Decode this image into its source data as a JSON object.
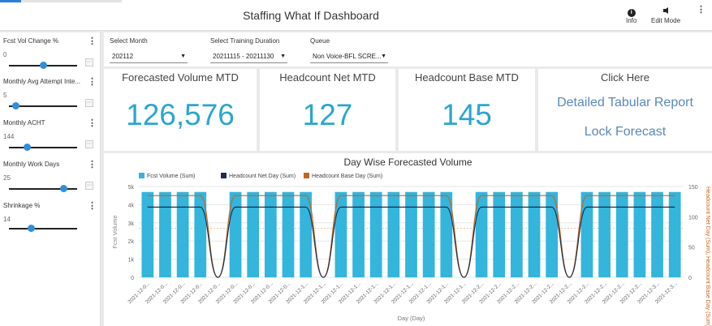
{
  "topbar": {
    "title": "Staffing What If Dashboard",
    "info_label": "Info",
    "info_icon": "info-icon",
    "edit_label": "Edit Mode",
    "edit_icon": "edit-mode-icon",
    "more_icon": "⋮"
  },
  "sliders": [
    {
      "label": "Fcst Vol Change %",
      "value": "0",
      "position": 0.5
    },
    {
      "label": "Monthly Avg Attempt Inte...",
      "value": "5",
      "position": 0.1
    },
    {
      "label": "Monthly ACHT",
      "value": "144",
      "position": 0.27
    },
    {
      "label": "Monthly Work Days",
      "value": "25",
      "position": 0.8
    },
    {
      "label": "Shrinkage %",
      "value": "14",
      "position": 0.33
    }
  ],
  "filters": {
    "month": {
      "label": "Select Month",
      "value": "202112"
    },
    "training": {
      "label": "Select Training Duration",
      "value": "20211115 - 20211130"
    },
    "queue": {
      "label": "Queue",
      "value": "Non Voice-BFL SCRE..."
    }
  },
  "kpis": {
    "forecasted_volume": {
      "title": "Forecasted Volume MTD",
      "value": "126,576"
    },
    "headcount_net": {
      "title": "Headcount Net MTD",
      "value": "127"
    },
    "headcount_base": {
      "title": "Headcount Base MTD",
      "value": "145"
    }
  },
  "actions": {
    "title": "Click Here",
    "report_link": "Detailed Tabular Report",
    "lock_link": "Lock Forecast"
  },
  "colors": {
    "bar": "#33b5dc",
    "net_line": "#1b2e4a",
    "base_line": "#c8641c",
    "kpi_value": "#2aa6cf",
    "link": "#5b88b8",
    "slider_thumb": "#2f8fd8"
  },
  "chart_data": {
    "type": "bar",
    "title": "Day Wise Forecasted Volume",
    "xlabel": "Day (Day)",
    "ylabel": "Fcst Volume",
    "y2label": "Headcount Net Day (Sum), Headcount Base Day (Sum)",
    "ylim": [
      0,
      5000
    ],
    "y2lim": [
      0,
      150
    ],
    "yticks": [
      "0",
      "1k",
      "2k",
      "3k",
      "4k",
      "5k"
    ],
    "y2ticks": [
      "0",
      "50",
      "100",
      "150"
    ],
    "legend": [
      "Fcst Volume (Sum)",
      "Headcount Net Day (Sum)",
      "Headcount Base Day (Sum)"
    ],
    "legend_position": "top-left",
    "categories": [
      "2021-12-0...",
      "2021-12-0...",
      "2021-12-0...",
      "2021-12-0...",
      "2021-12-0...",
      "2021-12-0...",
      "2021-12-0...",
      "2021-12-0...",
      "2021-12-0...",
      "2021-12-1...",
      "2021-12-1...",
      "2021-12-1...",
      "2021-12-1...",
      "2021-12-1...",
      "2021-12-1...",
      "2021-12-1...",
      "2021-12-1...",
      "2021-12-1...",
      "2021-12-1...",
      "2021-12-2...",
      "2021-12-2...",
      "2021-12-2...",
      "2021-12-2...",
      "2021-12-2...",
      "2021-12-2...",
      "2021-12-2...",
      "2021-12-2...",
      "2021-12-2...",
      "2021-12-2...",
      "2021-12-3...",
      "2021-12-3..."
    ],
    "series": [
      {
        "name": "Fcst Volume (Sum)",
        "type": "bar",
        "axis": "y",
        "values": [
          4700,
          4700,
          4700,
          4700,
          0,
          4700,
          4700,
          4700,
          4700,
          4700,
          0,
          4700,
          4700,
          4700,
          4700,
          4700,
          4700,
          4700,
          0,
          4700,
          4700,
          4700,
          4700,
          4700,
          0,
          4700,
          4700,
          4700,
          4700,
          4700,
          4700
        ]
      },
      {
        "name": "Headcount Net Day (Sum)",
        "type": "line",
        "axis": "y2",
        "values": [
          116,
          116,
          116,
          116,
          0,
          116,
          116,
          116,
          116,
          116,
          0,
          116,
          116,
          116,
          116,
          116,
          116,
          116,
          0,
          116,
          116,
          116,
          116,
          116,
          0,
          116,
          116,
          116,
          116,
          116,
          116
        ]
      },
      {
        "name": "Headcount Base Day (Sum)",
        "type": "line",
        "axis": "y2",
        "values": [
          135,
          135,
          135,
          135,
          0,
          135,
          135,
          135,
          135,
          135,
          0,
          135,
          135,
          135,
          135,
          135,
          135,
          135,
          0,
          135,
          135,
          135,
          135,
          135,
          0,
          135,
          135,
          135,
          135,
          135,
          135
        ]
      }
    ],
    "grid": true
  }
}
